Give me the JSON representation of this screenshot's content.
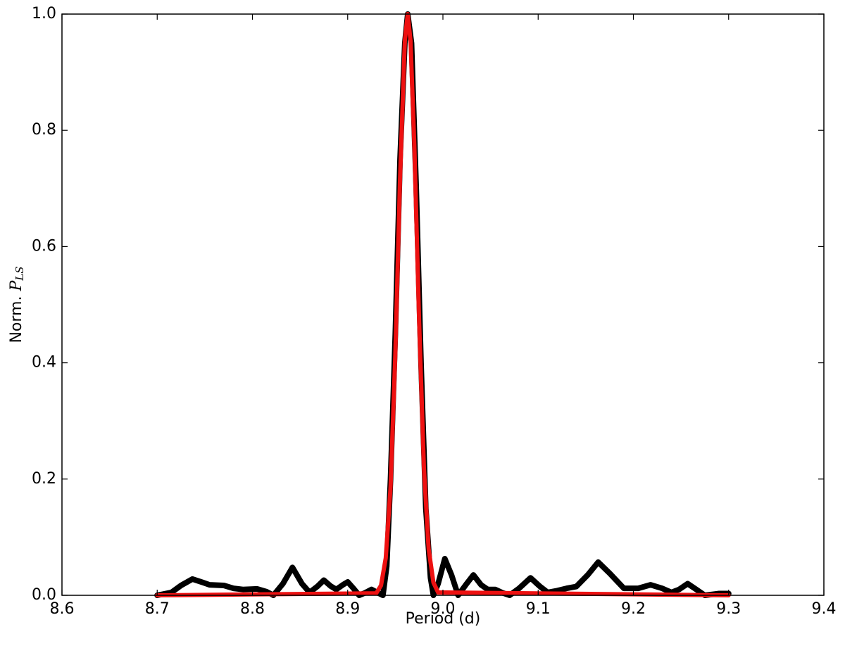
{
  "chart_data": {
    "type": "line",
    "x_label": "Period (d)",
    "y_label": [
      "Norm. ",
      "P",
      "LS"
    ],
    "xlim": [
      8.6,
      9.4
    ],
    "ylim": [
      0,
      1
    ],
    "xticks": [
      8.6,
      8.7,
      8.8,
      8.9,
      {
        "value": 9,
        "label": "9.0"
      },
      9.1,
      9.2,
      9.3,
      9.4
    ],
    "yticks": [
      {
        "value": 0,
        "label": "0.0"
      },
      0.2,
      0.4,
      0.6,
      0.8,
      {
        "value": 1,
        "label": "1.0"
      }
    ],
    "grid": false,
    "series": [
      {
        "color": "#000000",
        "width": 8,
        "x": [
          8.7,
          8.715,
          8.725,
          8.737,
          8.748,
          8.755,
          8.77,
          8.78,
          8.79,
          8.805,
          8.815,
          8.822,
          8.832,
          8.842,
          8.852,
          8.86,
          8.868,
          8.875,
          8.882,
          8.888,
          8.895,
          8.9,
          8.906,
          8.912,
          8.918,
          8.925,
          8.932,
          8.937,
          8.941,
          8.945,
          8.95,
          8.955,
          8.96,
          8.963,
          8.967,
          8.972,
          8.977,
          8.982,
          8.987,
          8.99,
          8.995,
          9.002,
          9.009,
          9.016,
          9.024,
          9.032,
          9.04,
          9.047,
          9.055,
          9.063,
          9.07,
          9.08,
          9.092,
          9.102,
          9.11,
          9.12,
          9.13,
          9.14,
          9.152,
          9.163,
          9.175,
          9.19,
          9.205,
          9.218,
          9.23,
          9.24,
          9.248,
          9.257,
          9.266,
          9.275,
          9.29,
          9.3
        ],
        "values": [
          0.0,
          0.005,
          0.017,
          0.028,
          0.022,
          0.018,
          0.017,
          0.012,
          0.01,
          0.011,
          0.006,
          0.0,
          0.02,
          0.048,
          0.02,
          0.005,
          0.015,
          0.026,
          0.016,
          0.01,
          0.018,
          0.023,
          0.012,
          0.0,
          0.004,
          0.01,
          0.004,
          0.0,
          0.05,
          0.2,
          0.45,
          0.75,
          0.95,
          1.0,
          0.95,
          0.7,
          0.4,
          0.15,
          0.03,
          0.0,
          0.02,
          0.063,
          0.035,
          0.0,
          0.018,
          0.035,
          0.018,
          0.01,
          0.01,
          0.004,
          0.0,
          0.012,
          0.03,
          0.015,
          0.005,
          0.008,
          0.012,
          0.015,
          0.035,
          0.057,
          0.038,
          0.012,
          0.012,
          0.018,
          0.012,
          0.005,
          0.01,
          0.02,
          0.01,
          0.0,
          0.003,
          0.003
        ]
      },
      {
        "color": "#ee1111",
        "width": 6,
        "x": [
          8.7,
          8.93,
          8.935,
          8.94,
          8.945,
          8.95,
          8.955,
          8.96,
          8.963,
          8.966,
          8.97,
          8.975,
          8.98,
          8.985,
          8.99,
          8.995,
          9.3
        ],
        "values": [
          0.0,
          0.0035,
          0.017,
          0.064,
          0.185,
          0.415,
          0.717,
          0.954,
          1.0,
          0.954,
          0.775,
          0.472,
          0.22,
          0.08,
          0.022,
          0.005,
          0.0
        ]
      }
    ]
  }
}
